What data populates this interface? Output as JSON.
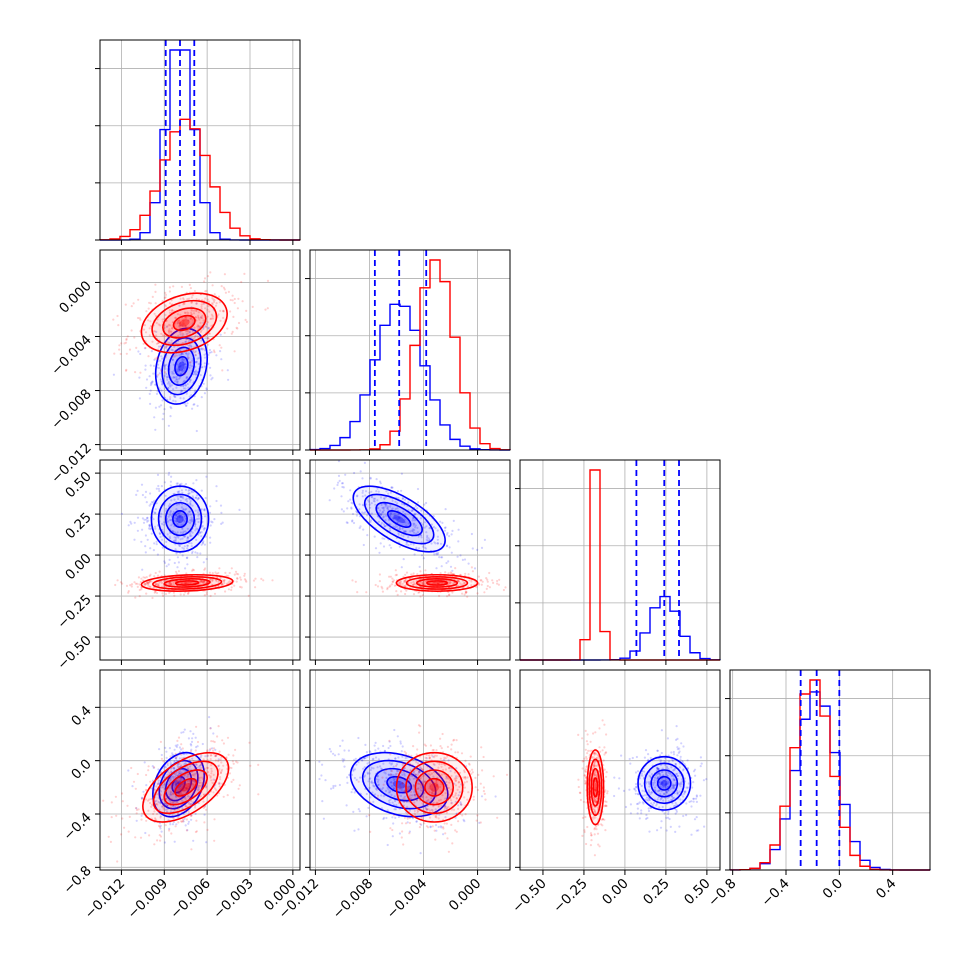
{
  "colors": {
    "blue": "#0000ff",
    "red": "#ff0000",
    "grid": "#b0b0b0"
  },
  "chart_data": {
    "type": "corner",
    "grid": true,
    "parameters": [
      {
        "ticks": [
          -0.012,
          -0.009,
          -0.006,
          -0.003,
          0.0
        ],
        "tick_labels": [
          "−0.012",
          "−0.009",
          "−0.006",
          "−0.003",
          "0.000"
        ],
        "range": [
          -0.0135,
          0.0005
        ]
      },
      {
        "ticks": [
          -0.012,
          -0.008,
          -0.004,
          0.0
        ],
        "tick_labels": [
          "−0.012",
          "−0.008",
          "−0.004",
          "0.000"
        ],
        "range": [
          -0.0124,
          0.0024
        ]
      },
      {
        "ticks": [
          -0.5,
          -0.25,
          0.0,
          0.25,
          0.5
        ],
        "tick_labels": [
          "−0.50",
          "−0.25",
          "0.00",
          "0.25",
          "0.50"
        ],
        "range": [
          -0.64,
          0.58
        ]
      },
      {
        "ticks": [
          -0.8,
          -0.4,
          0.0,
          0.4
        ],
        "tick_labels": [
          "−0.8",
          "−0.4",
          "0.0",
          "0.4"
        ],
        "range": [
          -0.82,
          0.68
        ]
      }
    ],
    "series": [
      {
        "color": "blue",
        "mean": [
          -0.0079,
          -0.0058,
          0.24,
          -0.17
        ],
        "sd": [
          0.00095,
          0.0018,
          0.09,
          0.15
        ],
        "quantiles": [
          [
            -0.0089,
            -0.0079,
            -0.0069
          ],
          [
            -0.0076,
            -0.0058,
            -0.0038
          ],
          [
            0.07,
            0.24,
            0.33
          ],
          [
            -0.29,
            -0.17,
            0.0
          ]
        ]
      },
      {
        "color": "red",
        "mean": [
          -0.0075,
          -0.0031,
          -0.18,
          -0.2
        ],
        "sd": [
          0.0016,
          0.0014,
          0.03,
          0.14
        ]
      }
    ],
    "pairs": [
      {
        "x": 0,
        "y": 1,
        "blue_mean": [
          -0.0078,
          -0.0062
        ],
        "blue_sd": [
          0.0009,
          0.0014
        ],
        "blue_rho": 0.2,
        "red_mean": [
          -0.0076,
          -0.003
        ],
        "red_sd": [
          0.0015,
          0.0011
        ],
        "red_rho": 0.3
      },
      {
        "x": 0,
        "y": 2,
        "blue_mean": [
          -0.0079,
          0.22
        ],
        "blue_sd": [
          0.001,
          0.1
        ],
        "blue_rho": 0.0,
        "red_mean": [
          -0.0074,
          -0.17
        ],
        "red_sd": [
          0.0016,
          0.025
        ],
        "red_rho": 0.2
      },
      {
        "x": 1,
        "y": 2,
        "blue_mean": [
          -0.0058,
          0.22
        ],
        "blue_sd": [
          0.0017,
          0.1
        ],
        "blue_rho": -0.65,
        "red_mean": [
          -0.003,
          -0.17
        ],
        "red_sd": [
          0.0015,
          0.025
        ],
        "red_rho": 0.0
      },
      {
        "x": 0,
        "y": 3,
        "blue_mean": [
          -0.008,
          -0.18
        ],
        "blue_sd": [
          0.0009,
          0.12
        ],
        "blue_rho": 0.3,
        "red_mean": [
          -0.0075,
          -0.2
        ],
        "red_sd": [
          0.0015,
          0.13
        ],
        "red_rho": 0.55
      },
      {
        "x": 1,
        "y": 3,
        "blue_mean": [
          -0.0058,
          -0.18
        ],
        "blue_sd": [
          0.0018,
          0.12
        ],
        "blue_rho": -0.3,
        "red_mean": [
          -0.0032,
          -0.2
        ],
        "red_sd": [
          0.0014,
          0.13
        ],
        "red_rho": 0.0
      },
      {
        "x": 2,
        "y": 3,
        "blue_mean": [
          0.24,
          -0.17
        ],
        "blue_sd": [
          0.08,
          0.1
        ],
        "blue_rho": 0.0,
        "red_mean": [
          -0.18,
          -0.2
        ],
        "red_sd": [
          0.025,
          0.14
        ],
        "red_rho": 0.0
      }
    ]
  }
}
